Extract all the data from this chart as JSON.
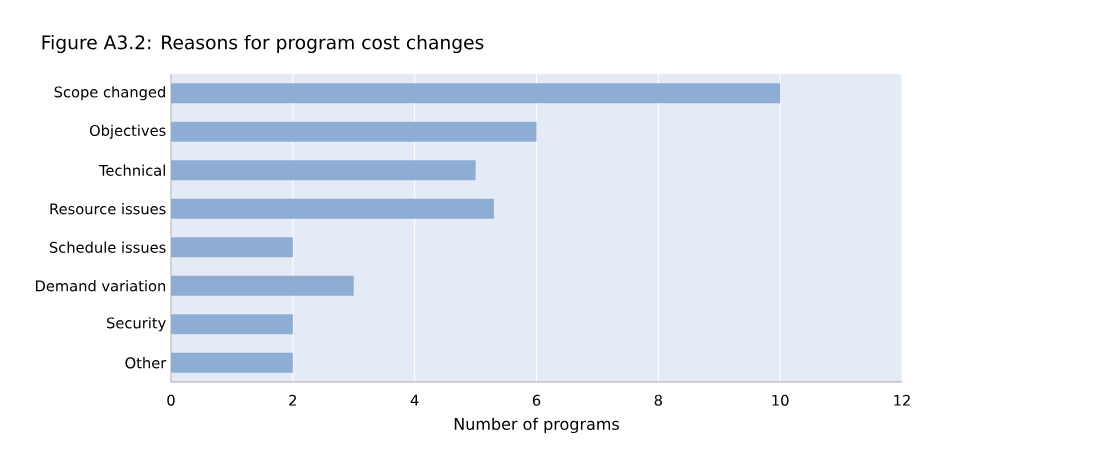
{
  "chart_data": {
    "type": "bar",
    "orientation": "horizontal",
    "title": "Figure A3.2: Reasons for program cost changes",
    "xlabel": "Number of programs",
    "categories": [
      "Scope changed",
      "Objectives",
      "Technical",
      "Resource issues",
      "Schedule issues",
      "Demand variation",
      "Security",
      "Other"
    ],
    "values": [
      10,
      6,
      5,
      5.3,
      2,
      3,
      2,
      2
    ],
    "color": "#8eadd5",
    "xlim": [
      0,
      12
    ],
    "xticks": [
      0,
      2,
      4,
      6,
      8,
      10,
      12
    ],
    "grid": "x"
  }
}
